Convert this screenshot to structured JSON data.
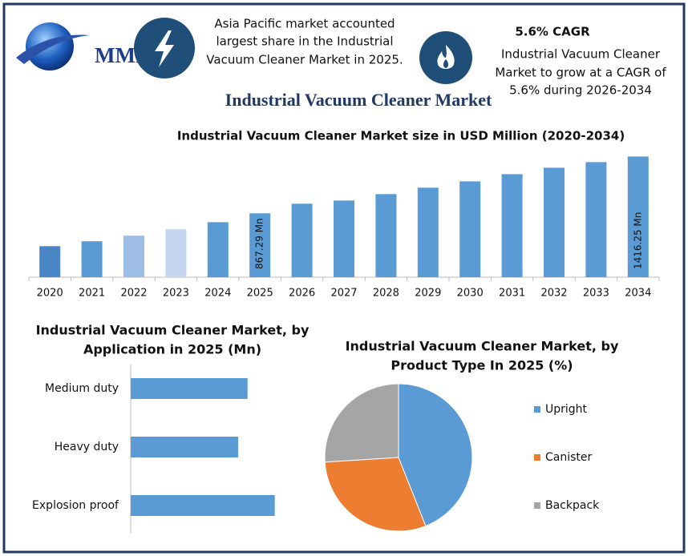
{
  "header": {
    "logo_text": "MMR",
    "highlight": [
      "Asia Pacific market accounted",
      "largest share in the Industrial",
      "Vacuum Cleaner Market in 2025."
    ],
    "cagr_title": "5.6% CAGR",
    "cagr_text": [
      "Industrial Vacuum Cleaner",
      "Market to grow at a CAGR of",
      "5.6% during 2026-2034"
    ],
    "title": "Industrial Vacuum Cleaner Market"
  },
  "chart_data": [
    {
      "type": "bar",
      "title": "Industrial Vacuum Cleaner Market size in USD Million (2020-2034)",
      "categories": [
        "2020",
        "2021",
        "2022",
        "2023",
        "2024",
        "2025",
        "2026",
        "2027",
        "2028",
        "2029",
        "2030",
        "2031",
        "2032",
        "2033",
        "2034"
      ],
      "values": [
        550,
        597,
        651,
        713,
        782,
        867.29,
        960,
        991,
        1053,
        1115,
        1176,
        1246,
        1308,
        1362,
        1416.25
      ],
      "value_labels": [
        null,
        null,
        null,
        null,
        null,
        "867.29 Mn",
        null,
        null,
        null,
        null,
        null,
        null,
        null,
        null,
        "1416.25 Mn"
      ],
      "colors": [
        "#4a86c5",
        "#5b9bd5",
        "#9dbde6",
        "#c5d7f0",
        "#5b9bd5",
        "#5b9bd5",
        "#5b9bd5",
        "#5b9bd5",
        "#5b9bd5",
        "#5b9bd5",
        "#5b9bd5",
        "#5b9bd5",
        "#5b9bd5",
        "#5b9bd5",
        "#5b9bd5"
      ],
      "ylim": [
        250,
        1450
      ]
    },
    {
      "type": "hbar",
      "title": [
        "Industrial Vacuum Cleaner Market, by",
        "Application in 2025 (Mn)"
      ],
      "categories": [
        "Medium duty",
        "Heavy duty",
        "Explosion proof"
      ],
      "values": [
        275,
        253,
        339
      ],
      "color": "#5b9bd5",
      "xlim": [
        0,
        400
      ]
    },
    {
      "type": "pie",
      "title": [
        "Industrial Vacuum Cleaner Market, by",
        "Product Type In 2025 (%)"
      ],
      "categories": [
        "Upright",
        "Canister",
        "Backpack"
      ],
      "values": [
        44,
        30,
        26
      ],
      "colors": [
        "#5b9bd5",
        "#ed7d31",
        "#a5a5a5"
      ],
      "legend": "right"
    }
  ]
}
